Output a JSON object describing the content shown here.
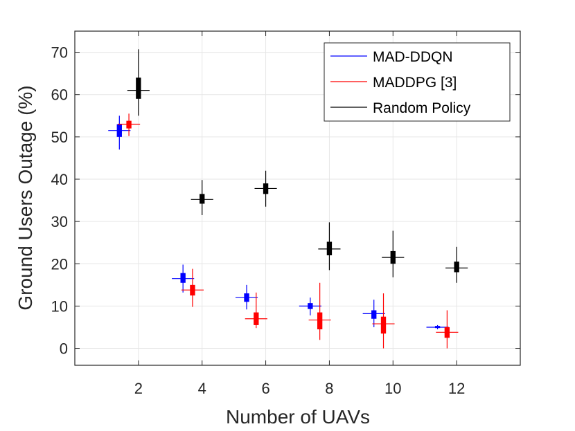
{
  "chart_data": {
    "type": "scatter",
    "chart_style": "box-style error plot (mean marker with quartile box and min-max whiskers)",
    "title": "",
    "xlabel": "Number of UAVs",
    "ylabel": "Ground Users Outage (%)",
    "xlim": [
      0,
      14
    ],
    "ylim": [
      -4,
      75
    ],
    "xticks": [
      2,
      4,
      6,
      8,
      10,
      12
    ],
    "yticks": [
      0,
      10,
      20,
      30,
      40,
      50,
      60,
      70
    ],
    "grid": true,
    "legend_position": "top-right",
    "series": [
      {
        "name": "MAD-DDQN",
        "color": "#0000ff",
        "offset": -0.6,
        "points": [
          {
            "x": 2,
            "mean": 51.5,
            "q1": 50.0,
            "q3": 53.0,
            "min": 47.0,
            "max": 55.0
          },
          {
            "x": 4,
            "mean": 16.5,
            "q1": 15.5,
            "q3": 17.8,
            "min": 13.2,
            "max": 19.8
          },
          {
            "x": 6,
            "mean": 12.0,
            "q1": 11.0,
            "q3": 13.0,
            "min": 9.2,
            "max": 15.0
          },
          {
            "x": 8,
            "mean": 10.0,
            "q1": 9.3,
            "q3": 10.7,
            "min": 7.8,
            "max": 12.0
          },
          {
            "x": 10,
            "mean": 8.2,
            "q1": 7.0,
            "q3": 9.0,
            "min": 5.0,
            "max": 11.5
          },
          {
            "x": 12,
            "mean": 5.0,
            "q1": 4.8,
            "q3": 5.3,
            "min": 4.5,
            "max": 5.5
          }
        ]
      },
      {
        "name": "MADDPG [3]",
        "color": "#ff0000",
        "offset": -0.3,
        "points": [
          {
            "x": 2,
            "mean": 53.0,
            "q1": 52.0,
            "q3": 53.8,
            "min": 50.2,
            "max": 55.5
          },
          {
            "x": 4,
            "mean": 13.8,
            "q1": 12.5,
            "q3": 15.0,
            "min": 9.8,
            "max": 18.8
          },
          {
            "x": 6,
            "mean": 7.0,
            "q1": 5.5,
            "q3": 8.5,
            "min": 4.8,
            "max": 13.2
          },
          {
            "x": 8,
            "mean": 6.7,
            "q1": 4.5,
            "q3": 8.5,
            "min": 2.0,
            "max": 15.5
          },
          {
            "x": 10,
            "mean": 5.8,
            "q1": 3.5,
            "q3": 7.5,
            "min": 0.0,
            "max": 13.0
          },
          {
            "x": 12,
            "mean": 3.8,
            "q1": 2.5,
            "q3": 5.0,
            "min": 0.0,
            "max": 9.0
          }
        ]
      },
      {
        "name": "Random Policy",
        "color": "#000000",
        "offset": 0.0,
        "points": [
          {
            "x": 2,
            "mean": 61.0,
            "q1": 59.0,
            "q3": 64.0,
            "min": 55.0,
            "max": 70.7
          },
          {
            "x": 4,
            "mean": 35.2,
            "q1": 34.2,
            "q3": 36.5,
            "min": 31.5,
            "max": 39.8
          },
          {
            "x": 6,
            "mean": 37.8,
            "q1": 36.5,
            "q3": 39.0,
            "min": 33.5,
            "max": 42.0
          },
          {
            "x": 8,
            "mean": 23.5,
            "q1": 22.0,
            "q3": 25.2,
            "min": 18.5,
            "max": 29.8
          },
          {
            "x": 10,
            "mean": 21.5,
            "q1": 20.0,
            "q3": 23.0,
            "min": 16.8,
            "max": 27.8
          },
          {
            "x": 12,
            "mean": 19.0,
            "q1": 18.0,
            "q3": 20.5,
            "min": 15.5,
            "max": 24.0
          }
        ]
      }
    ]
  }
}
